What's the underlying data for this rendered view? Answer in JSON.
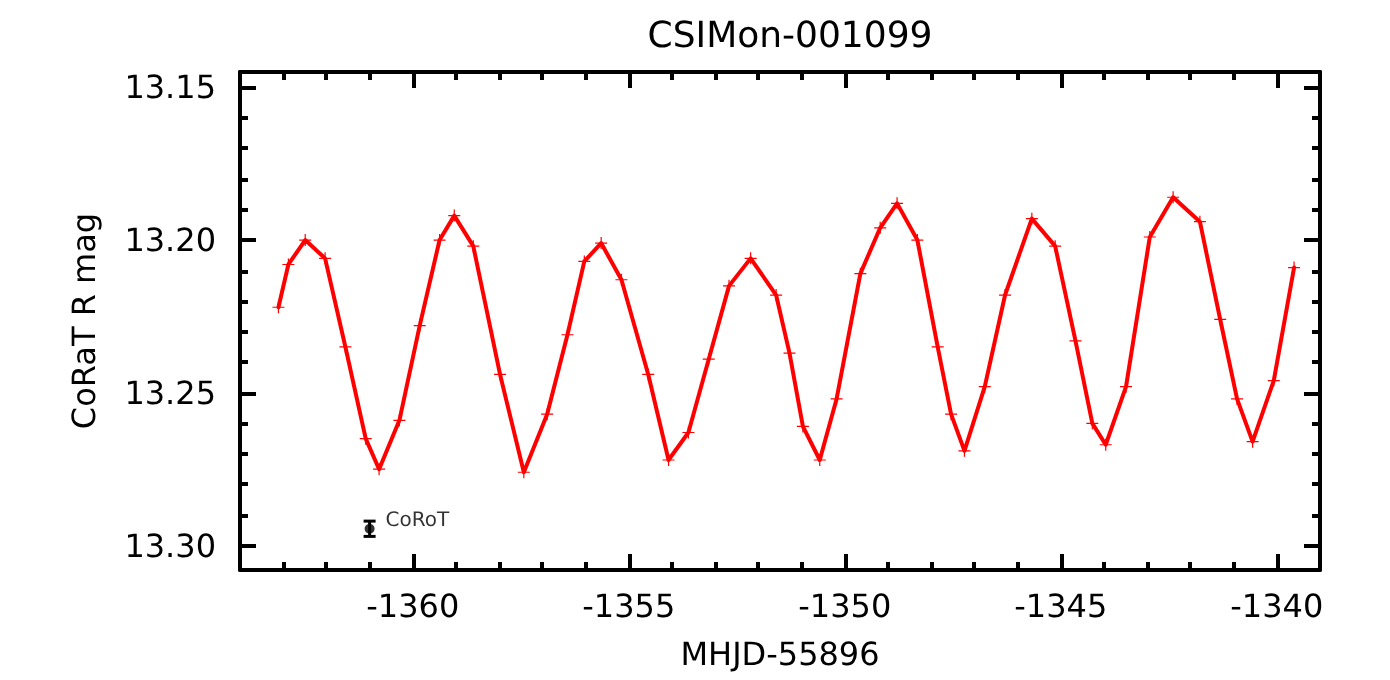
{
  "chart_data": {
    "type": "line",
    "title": "CSIMon-001099",
    "xlabel": "MHJD-55896",
    "ylabel": "CoRaT R mag",
    "marker": "cross",
    "xlim": [
      -1364,
      -1339
    ],
    "xticks": [
      -1360,
      -1355,
      -1350,
      -1345,
      -1340
    ],
    "ylim": [
      13.308,
      13.145
    ],
    "yticks": [
      13.15,
      {
        "value": 13.2,
        "label": "13.20"
      },
      13.25,
      {
        "value": 13.3,
        "label": "13.30"
      }
    ],
    "annotations": [
      {
        "text": "CoRoT",
        "x": -1361.0,
        "y": 13.2945
      }
    ],
    "series": [
      {
        "color": "#ff0000",
        "x": [
          -1363.11,
          -1362.88,
          -1362.49,
          -1362.03,
          -1361.56,
          -1361.09,
          -1360.78,
          -1360.31,
          -1359.84,
          -1359.38,
          -1359.04,
          -1358.6,
          -1357.98,
          -1357.43,
          -1356.89,
          -1356.42,
          -1356.03,
          -1355.64,
          -1355.17,
          -1354.55,
          -1354.08,
          -1353.62,
          -1353.15,
          -1352.68,
          -1352.18,
          -1351.59,
          -1351.28,
          -1350.97,
          -1350.58,
          -1350.19,
          -1349.64,
          -1349.18,
          -1348.79,
          -1348.32,
          -1347.85,
          -1347.54,
          -1347.23,
          -1346.76,
          -1346.29,
          -1345.67,
          -1345.13,
          -1344.66,
          -1344.27,
          -1343.96,
          -1343.49,
          -1342.94,
          -1342.4,
          -1341.78,
          -1341.31,
          -1340.92,
          -1340.56,
          -1340.07,
          -1339.6
        ],
        "values": [
          13.222,
          13.208,
          13.2,
          13.206,
          13.235,
          13.265,
          13.275,
          13.259,
          13.228,
          13.2,
          13.192,
          13.202,
          13.244,
          13.276,
          13.257,
          13.231,
          13.207,
          13.201,
          13.213,
          13.244,
          13.272,
          13.263,
          13.239,
          13.215,
          13.206,
          13.218,
          13.237,
          13.261,
          13.272,
          13.252,
          13.211,
          13.196,
          13.188,
          13.2,
          13.235,
          13.257,
          13.269,
          13.248,
          13.218,
          13.193,
          13.202,
          13.233,
          13.26,
          13.267,
          13.248,
          13.199,
          13.186,
          13.194,
          13.226,
          13.252,
          13.266,
          13.246,
          13.209
        ]
      },
      {
        "type": "scatter",
        "color": "#000000",
        "marker": "circle",
        "x": [
          -1361.0
        ],
        "values": [
          13.2945
        ],
        "errors": [
          0.0025
        ]
      }
    ]
  }
}
